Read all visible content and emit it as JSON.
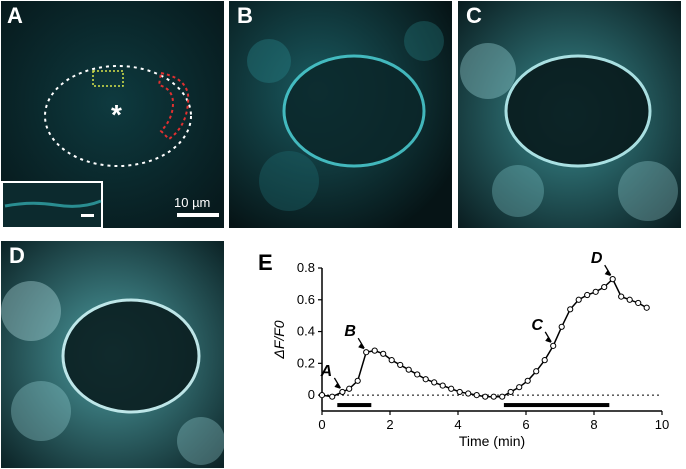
{
  "panels": {
    "a": {
      "label": "A",
      "scale_bar_text": "10 µm",
      "marker": "*"
    },
    "b": {
      "label": "B"
    },
    "c": {
      "label": "C"
    },
    "d": {
      "label": "D"
    },
    "e": {
      "label": "E"
    }
  },
  "colors": {
    "cyan": "#3fd0d4",
    "cyan_dim": "#0f3338",
    "background": "#000000"
  },
  "chart_data": {
    "type": "line",
    "xlabel": "Time (min)",
    "ylabel": "ΔF/F0",
    "xlim": [
      0,
      10
    ],
    "ylim": [
      -0.1,
      0.8
    ],
    "xticks": [
      "0",
      "2",
      "4",
      "6",
      "8",
      "10"
    ],
    "yticks": [
      "0",
      "0.2",
      "0.4",
      "0.6",
      "0.8"
    ],
    "baseline": 0,
    "series": [
      {
        "x": [
          0,
          0.3,
          0.6,
          0.8,
          1.05,
          1.3,
          1.55,
          1.8,
          2.05,
          2.3,
          2.55,
          2.8,
          3.05,
          3.3,
          3.55,
          3.8,
          4.05,
          4.3,
          4.55,
          4.8,
          5.05,
          5.3,
          5.55,
          5.8,
          6.05,
          6.3,
          6.55,
          6.8,
          7.05,
          7.3,
          7.55,
          7.8,
          8.05,
          8.3,
          8.55,
          8.8,
          9.05,
          9.3,
          9.55
        ],
        "y": [
          0,
          -0.01,
          0.02,
          0.04,
          0.09,
          0.27,
          0.28,
          0.26,
          0.22,
          0.19,
          0.16,
          0.13,
          0.1,
          0.08,
          0.06,
          0.04,
          0.02,
          0.01,
          0.0,
          -0.01,
          -0.01,
          -0.01,
          0.02,
          0.05,
          0.09,
          0.15,
          0.22,
          0.31,
          0.43,
          0.54,
          0.6,
          0.63,
          0.65,
          0.68,
          0.73,
          0.62,
          0.6,
          0.58,
          0.55
        ]
      }
    ],
    "annotations": [
      {
        "text": "A",
        "x": 0.6,
        "y": 0.02
      },
      {
        "text": "B",
        "x": 1.3,
        "y": 0.27
      },
      {
        "text": "C",
        "x": 6.8,
        "y": 0.31
      },
      {
        "text": "D",
        "x": 8.55,
        "y": 0.73
      }
    ],
    "stimulus_bars": [
      [
        0.45,
        1.45
      ],
      [
        5.35,
        8.45
      ]
    ]
  }
}
